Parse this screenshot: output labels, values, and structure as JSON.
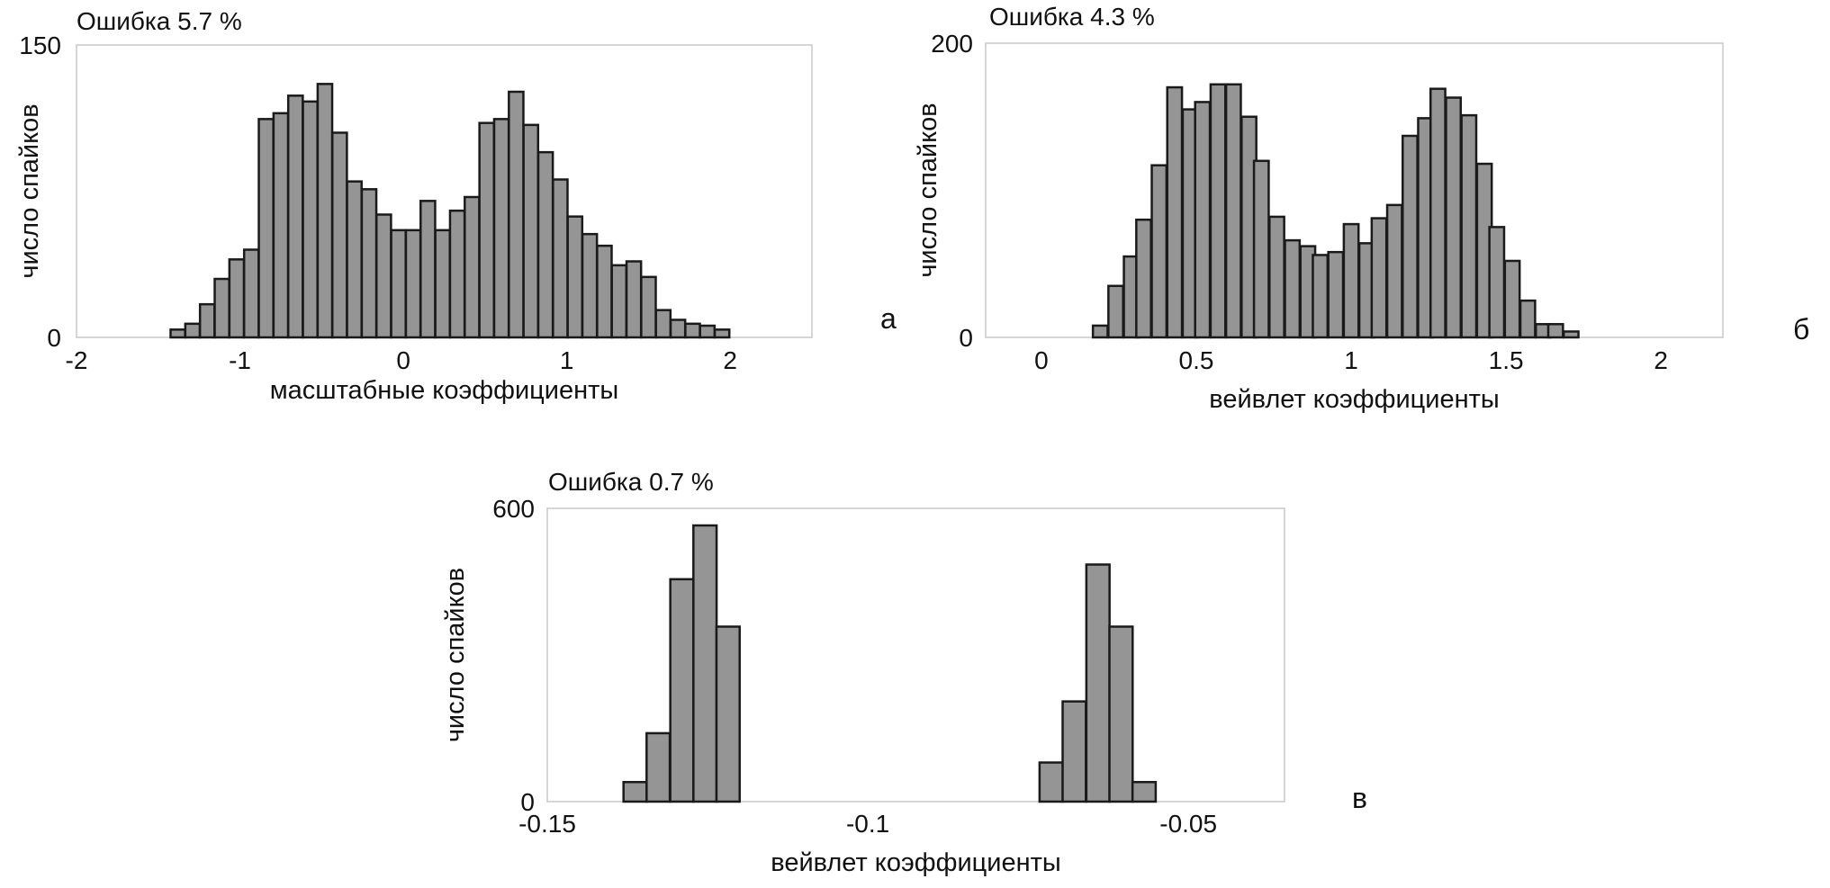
{
  "colors": {
    "bar_fill": "#959595",
    "bar_stroke": "#1a1a1a",
    "frame": "#c8c8c8",
    "text": "#111111"
  },
  "chart_data": [
    {
      "type": "bar",
      "title": "Ошибка 5.7 %",
      "panel_label": "а",
      "xlabel": "масштабные коэффициенты",
      "ylabel": "число спайков",
      "xlim": [
        -2,
        2.5
      ],
      "ylim": [
        0,
        150
      ],
      "xticks": [
        -2,
        -1,
        0,
        1,
        2
      ],
      "xtick_labels": [
        "-2",
        "-1",
        "0",
        "1",
        "2"
      ],
      "yticks": [
        0,
        150
      ],
      "ytick_labels": [
        "0",
        "150"
      ],
      "grid": false,
      "bin_width": 0.0889,
      "x": [
        -1.38,
        -1.29,
        -1.2,
        -1.11,
        -1.02,
        -0.93,
        -0.84,
        -0.75,
        -0.66,
        -0.57,
        -0.48,
        -0.39,
        -0.3,
        -0.21,
        -0.12,
        -0.03,
        0.06,
        0.15,
        0.24,
        0.33,
        0.42,
        0.51,
        0.6,
        0.69,
        0.78,
        0.87,
        0.96,
        1.05,
        1.14,
        1.23,
        1.32,
        1.41,
        1.5,
        1.59,
        1.68,
        1.77,
        1.86,
        1.95
      ],
      "values": [
        4,
        7,
        17,
        30,
        40,
        45,
        112,
        115,
        124,
        121,
        130,
        105,
        80,
        76,
        63,
        55,
        55,
        70,
        55,
        65,
        72,
        110,
        112,
        126,
        109,
        95,
        81,
        62,
        53,
        47,
        37,
        39,
        31,
        14,
        9,
        7,
        6,
        4
      ]
    },
    {
      "type": "bar",
      "title": "Ошибка 4.3 %",
      "panel_label": "б",
      "xlabel": "вейвлет коэффициенты",
      "ylabel": "число спайков",
      "xlim": [
        -0.18,
        2.2
      ],
      "ylim": [
        0,
        200
      ],
      "xticks": [
        0,
        0.5,
        1,
        1.5,
        2
      ],
      "xtick_labels": [
        "0",
        "0.5",
        "1",
        "1.5",
        "2"
      ],
      "yticks": [
        0,
        200
      ],
      "ytick_labels": [
        "0",
        "200"
      ],
      "grid": false,
      "bin_width": 0.0475,
      "x": [
        0.19,
        0.24,
        0.29,
        0.33,
        0.38,
        0.43,
        0.48,
        0.52,
        0.57,
        0.62,
        0.67,
        0.71,
        0.76,
        0.81,
        0.86,
        0.9,
        0.95,
        1.0,
        1.05,
        1.09,
        1.14,
        1.19,
        1.24,
        1.28,
        1.33,
        1.38,
        1.43,
        1.47,
        1.52,
        1.57,
        1.62,
        1.66,
        1.71,
        1.76,
        1.81
      ],
      "values": [
        8,
        35,
        55,
        80,
        117,
        170,
        155,
        160,
        172,
        172,
        150,
        120,
        82,
        66,
        62,
        56,
        58,
        77,
        64,
        81,
        90,
        137,
        149,
        169,
        163,
        151,
        118,
        75,
        52,
        25,
        9,
        9,
        4,
        0,
        0
      ]
    },
    {
      "type": "bar",
      "title": "Ошибка 0.7 %",
      "panel_label": "в",
      "xlabel": "вейвлет коэффициенты",
      "ylabel": "число спайков",
      "xlim": [
        -0.15,
        -0.035
      ],
      "ylim": [
        0,
        600
      ],
      "xticks": [
        -0.15,
        -0.1,
        -0.05
      ],
      "xtick_labels": [
        "-0.15",
        "-0.1",
        "-0.05"
      ],
      "yticks": [
        0,
        600
      ],
      "ytick_labels": [
        "0",
        "600"
      ],
      "grid": false,
      "bin_width": 0.00362,
      "x": [
        -0.1363,
        -0.1327,
        -0.129,
        -0.1254,
        -0.1218,
        -0.0714,
        -0.0678,
        -0.0641,
        -0.0605,
        -0.0569
      ],
      "values": [
        40,
        140,
        455,
        565,
        358,
        80,
        205,
        485,
        358,
        40
      ]
    }
  ]
}
